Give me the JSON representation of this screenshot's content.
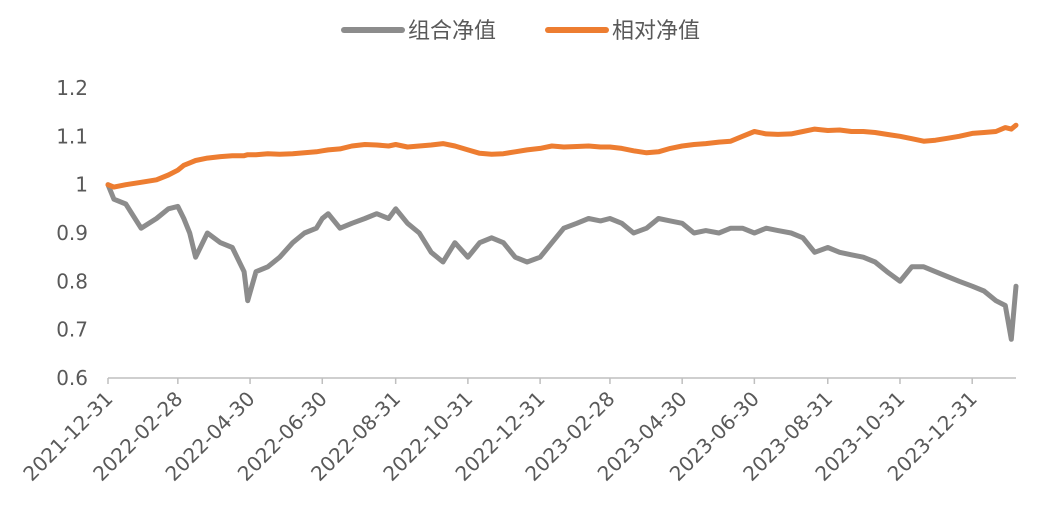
{
  "chart_data": {
    "type": "line",
    "title": "",
    "xlabel": "",
    "ylabel": "",
    "ylim": [
      0.6,
      1.2
    ],
    "yticks": [
      "0.6",
      "0.7",
      "0.8",
      "0.9",
      "1",
      "1.1",
      "1.2"
    ],
    "x_tick_labels": [
      "2021-12-31",
      "2022-02-28",
      "2022-04-30",
      "2022-06-30",
      "2022-08-31",
      "2022-10-31",
      "2022-12-31",
      "2023-02-28",
      "2023-04-30",
      "2023-06-30",
      "2023-08-31",
      "2023-10-31",
      "2023-12-31"
    ],
    "x_range": [
      "2021-12-31",
      "2024-02-06"
    ],
    "legend_position": "top-center",
    "grid": false,
    "x": [
      "2021-12-31",
      "2022-01-05",
      "2022-01-15",
      "2022-01-28",
      "2022-02-10",
      "2022-02-20",
      "2022-02-28",
      "2022-03-05",
      "2022-03-10",
      "2022-03-15",
      "2022-03-25",
      "2022-04-05",
      "2022-04-15",
      "2022-04-25",
      "2022-04-28",
      "2022-05-05",
      "2022-05-15",
      "2022-05-25",
      "2022-06-05",
      "2022-06-15",
      "2022-06-25",
      "2022-06-30",
      "2022-07-05",
      "2022-07-15",
      "2022-07-25",
      "2022-08-05",
      "2022-08-15",
      "2022-08-25",
      "2022-08-31",
      "2022-09-10",
      "2022-09-20",
      "2022-09-30",
      "2022-10-10",
      "2022-10-20",
      "2022-10-31",
      "2022-11-10",
      "2022-11-20",
      "2022-11-30",
      "2022-12-10",
      "2022-12-20",
      "2022-12-31",
      "2023-01-10",
      "2023-01-20",
      "2023-01-31",
      "2023-02-10",
      "2023-02-20",
      "2023-02-28",
      "2023-03-10",
      "2023-03-20",
      "2023-03-31",
      "2023-04-10",
      "2023-04-20",
      "2023-04-30",
      "2023-05-10",
      "2023-05-20",
      "2023-05-31",
      "2023-06-10",
      "2023-06-20",
      "2023-06-30",
      "2023-07-10",
      "2023-07-20",
      "2023-07-31",
      "2023-08-10",
      "2023-08-20",
      "2023-08-31",
      "2023-09-10",
      "2023-09-20",
      "2023-09-30",
      "2023-10-10",
      "2023-10-20",
      "2023-10-31",
      "2023-11-10",
      "2023-11-20",
      "2023-11-30",
      "2023-12-10",
      "2023-12-20",
      "2023-12-31",
      "2024-01-10",
      "2024-01-20",
      "2024-01-28",
      "2024-02-02",
      "2024-02-06"
    ],
    "series": [
      {
        "name": "组合净值",
        "color": "#8c8c8c",
        "values": [
          1.0,
          0.97,
          0.96,
          0.91,
          0.93,
          0.95,
          0.955,
          0.93,
          0.9,
          0.85,
          0.9,
          0.88,
          0.87,
          0.82,
          0.76,
          0.82,
          0.83,
          0.85,
          0.88,
          0.9,
          0.91,
          0.93,
          0.94,
          0.91,
          0.92,
          0.93,
          0.94,
          0.93,
          0.95,
          0.92,
          0.9,
          0.86,
          0.84,
          0.88,
          0.85,
          0.88,
          0.89,
          0.88,
          0.85,
          0.84,
          0.85,
          0.88,
          0.91,
          0.92,
          0.93,
          0.925,
          0.93,
          0.92,
          0.9,
          0.91,
          0.93,
          0.925,
          0.92,
          0.9,
          0.905,
          0.9,
          0.91,
          0.91,
          0.9,
          0.91,
          0.905,
          0.9,
          0.89,
          0.86,
          0.87,
          0.86,
          0.855,
          0.85,
          0.84,
          0.82,
          0.8,
          0.83,
          0.83,
          0.82,
          0.81,
          0.8,
          0.79,
          0.78,
          0.76,
          0.75,
          0.68,
          0.79
        ]
      },
      {
        "name": "相对净值",
        "color": "#ed7d31",
        "values": [
          1.0,
          0.995,
          1.0,
          1.005,
          1.01,
          1.02,
          1.03,
          1.04,
          1.045,
          1.05,
          1.055,
          1.058,
          1.06,
          1.06,
          1.062,
          1.062,
          1.064,
          1.063,
          1.064,
          1.066,
          1.068,
          1.07,
          1.072,
          1.074,
          1.08,
          1.083,
          1.082,
          1.08,
          1.083,
          1.078,
          1.08,
          1.082,
          1.085,
          1.08,
          1.072,
          1.065,
          1.063,
          1.064,
          1.068,
          1.072,
          1.075,
          1.08,
          1.078,
          1.079,
          1.08,
          1.078,
          1.078,
          1.075,
          1.07,
          1.066,
          1.068,
          1.075,
          1.08,
          1.083,
          1.085,
          1.088,
          1.09,
          1.1,
          1.11,
          1.105,
          1.104,
          1.105,
          1.11,
          1.115,
          1.112,
          1.113,
          1.11,
          1.11,
          1.108,
          1.104,
          1.1,
          1.095,
          1.09,
          1.092,
          1.096,
          1.1,
          1.106,
          1.108,
          1.11,
          1.118,
          1.115,
          1.123
        ]
      }
    ]
  }
}
